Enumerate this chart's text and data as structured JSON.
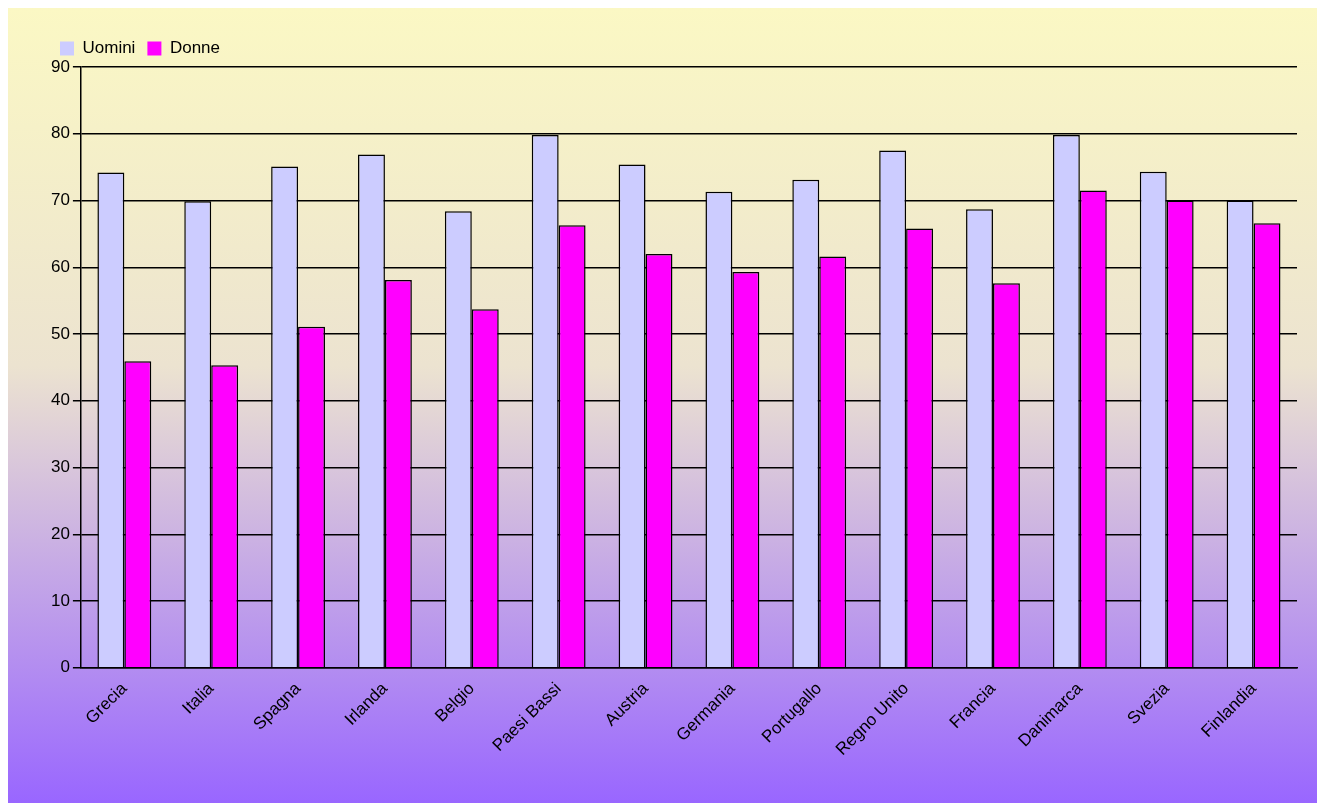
{
  "chart_data": {
    "type": "bar",
    "categories": [
      "Grecia",
      "Italia",
      "Spagna",
      "Irlanda",
      "Belgio",
      "Paesi Bassi",
      "Austria",
      "Germania",
      "Portugallo",
      "Regno Unito",
      "Francia",
      "Danimarca",
      "Svezia",
      "Finlandia"
    ],
    "series": [
      {
        "name": "Uomini",
        "color": "#ccccff",
        "values": [
          74.2,
          69.9,
          75.1,
          76.9,
          68.4,
          79.8,
          75.4,
          71.3,
          73.1,
          77.5,
          68.7,
          79.8,
          74.3,
          70.0
        ]
      },
      {
        "name": "Donne",
        "color": "#ff00ff",
        "values": [
          45.9,
          45.3,
          51.1,
          58.1,
          53.7,
          66.3,
          62.0,
          59.3,
          61.6,
          65.8,
          57.6,
          71.5,
          70.0,
          66.6
        ]
      }
    ],
    "ylim": [
      0,
      90
    ],
    "yticks": [
      0,
      10,
      20,
      30,
      40,
      50,
      60,
      70,
      80,
      90
    ],
    "grid": "y",
    "legend": "top left"
  }
}
